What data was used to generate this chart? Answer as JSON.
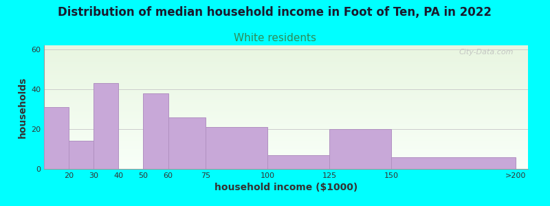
{
  "title": "Distribution of median household income in Foot of Ten, PA in 2022",
  "subtitle": "White residents",
  "xlabel": "household income ($1000)",
  "ylabel": "households",
  "background_color": "#00FFFF",
  "bar_color": "#C8A8D8",
  "bar_edge_color": "#B090C0",
  "categories": [
    "20",
    "30",
    "40",
    "50",
    "60",
    "75",
    "100",
    "125",
    "150",
    ">200"
  ],
  "values": [
    31,
    14,
    43,
    0,
    38,
    26,
    21,
    7,
    20,
    6
  ],
  "left_edges": [
    10,
    20,
    30,
    40,
    50,
    60,
    75,
    100,
    125,
    150
  ],
  "right_edges": [
    20,
    30,
    40,
    50,
    60,
    75,
    100,
    125,
    150,
    200
  ],
  "ylim": [
    0,
    62
  ],
  "yticks": [
    0,
    20,
    40,
    60
  ],
  "xlim": [
    10,
    205
  ],
  "xtick_positions": [
    20,
    30,
    40,
    50,
    60,
    75,
    100,
    125,
    150,
    200
  ],
  "xtick_labels": [
    "20",
    "30",
    "40",
    "50",
    "60",
    "75",
    "100",
    "125",
    "150",
    ">200"
  ],
  "title_fontsize": 12,
  "subtitle_fontsize": 11,
  "subtitle_color": "#2E8B57",
  "axis_label_fontsize": 10,
  "tick_fontsize": 8,
  "watermark_text": "City-Data.com",
  "grad_top_color": "#e8f5e0",
  "grad_bottom_color": "#f8fff8"
}
